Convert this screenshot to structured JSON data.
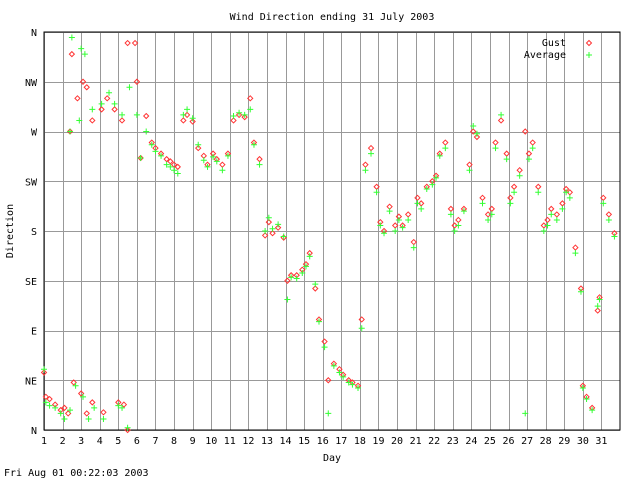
{
  "chart_data": {
    "type": "scatter",
    "title": "Wind Direction ending 31 July 2003",
    "xlabel": "Day",
    "ylabel": "Direction",
    "x_ticks": [
      "1",
      "2",
      "3",
      "4",
      "5",
      "6",
      "7",
      "8",
      "9",
      "10",
      "11",
      "12",
      "13",
      "14",
      "15",
      "16",
      "17",
      "18",
      "19",
      "20",
      "21",
      "22",
      "23",
      "24",
      "25",
      "26",
      "27",
      "28",
      "29",
      "30",
      "31"
    ],
    "y_ticks": [
      "N",
      "NE",
      "E",
      "SE",
      "S",
      "SW",
      "W",
      "NW",
      "N"
    ],
    "xlim": [
      1,
      32
    ],
    "ylim": [
      0,
      360
    ],
    "grid": true,
    "legend_position": "top-right",
    "series": [
      {
        "name": "Gust",
        "marker": "diamond",
        "color": "#ff3333",
        "points": [
          [
            1.0,
            52
          ],
          [
            1.1,
            30
          ],
          [
            1.3,
            28
          ],
          [
            1.6,
            23
          ],
          [
            1.9,
            18
          ],
          [
            2.1,
            20
          ],
          [
            2.3,
            15
          ],
          [
            2.6,
            43
          ],
          [
            3.0,
            33
          ],
          [
            3.3,
            15
          ],
          [
            3.6,
            25
          ],
          [
            4.2,
            16
          ],
          [
            5.0,
            25
          ],
          [
            5.3,
            23
          ],
          [
            5.5,
            0
          ],
          [
            2.4,
            270
          ],
          [
            2.5,
            340
          ],
          [
            2.8,
            300
          ],
          [
            3.1,
            315
          ],
          [
            3.3,
            310
          ],
          [
            3.6,
            280
          ],
          [
            4.1,
            290
          ],
          [
            4.4,
            300
          ],
          [
            4.8,
            290
          ],
          [
            5.2,
            280
          ],
          [
            5.5,
            350
          ],
          [
            5.9,
            350
          ],
          [
            6.0,
            315
          ],
          [
            6.2,
            246
          ],
          [
            6.5,
            284
          ],
          [
            6.8,
            260
          ],
          [
            7.0,
            255
          ],
          [
            7.3,
            250
          ],
          [
            7.6,
            245
          ],
          [
            7.8,
            243
          ],
          [
            8.0,
            240
          ],
          [
            8.2,
            238
          ],
          [
            8.5,
            280
          ],
          [
            8.7,
            285
          ],
          [
            9.0,
            279
          ],
          [
            9.3,
            255
          ],
          [
            9.6,
            248
          ],
          [
            9.8,
            240
          ],
          [
            10.1,
            250
          ],
          [
            10.3,
            245
          ],
          [
            10.6,
            240
          ],
          [
            10.9,
            250
          ],
          [
            11.2,
            280
          ],
          [
            11.5,
            285
          ],
          [
            11.8,
            283
          ],
          [
            12.1,
            300
          ],
          [
            12.3,
            260
          ],
          [
            12.6,
            245
          ],
          [
            12.9,
            176
          ],
          [
            13.1,
            188
          ],
          [
            13.3,
            178
          ],
          [
            13.6,
            183
          ],
          [
            13.9,
            174
          ],
          [
            14.1,
            135
          ],
          [
            14.3,
            140
          ],
          [
            14.6,
            140
          ],
          [
            14.9,
            145
          ],
          [
            15.1,
            150
          ],
          [
            15.3,
            160
          ],
          [
            15.6,
            128
          ],
          [
            15.8,
            100
          ],
          [
            16.1,
            80
          ],
          [
            16.3,
            45
          ],
          [
            16.6,
            60
          ],
          [
            16.9,
            55
          ],
          [
            17.1,
            50
          ],
          [
            17.4,
            45
          ],
          [
            17.6,
            43
          ],
          [
            17.9,
            40
          ],
          [
            18.1,
            100
          ],
          [
            18.3,
            240
          ],
          [
            18.6,
            255
          ],
          [
            18.9,
            220
          ],
          [
            19.1,
            188
          ],
          [
            19.3,
            180
          ],
          [
            19.6,
            202
          ],
          [
            19.9,
            185
          ],
          [
            20.1,
            193
          ],
          [
            20.3,
            185
          ],
          [
            20.6,
            195
          ],
          [
            20.9,
            170
          ],
          [
            21.1,
            210
          ],
          [
            21.3,
            205
          ],
          [
            21.6,
            220
          ],
          [
            21.9,
            225
          ],
          [
            22.1,
            230
          ],
          [
            22.3,
            250
          ],
          [
            22.6,
            260
          ],
          [
            22.9,
            200
          ],
          [
            23.1,
            185
          ],
          [
            23.3,
            190
          ],
          [
            23.6,
            200
          ],
          [
            23.9,
            240
          ],
          [
            24.1,
            270
          ],
          [
            24.3,
            265
          ],
          [
            24.6,
            210
          ],
          [
            24.9,
            195
          ],
          [
            25.1,
            200
          ],
          [
            25.3,
            260
          ],
          [
            25.6,
            280
          ],
          [
            25.9,
            250
          ],
          [
            26.1,
            210
          ],
          [
            26.3,
            220
          ],
          [
            26.6,
            235
          ],
          [
            26.9,
            270
          ],
          [
            27.1,
            250
          ],
          [
            27.3,
            260
          ],
          [
            27.6,
            220
          ],
          [
            27.9,
            185
          ],
          [
            28.1,
            190
          ],
          [
            28.3,
            200
          ],
          [
            28.6,
            195
          ],
          [
            28.9,
            205
          ],
          [
            29.1,
            218
          ],
          [
            29.3,
            215
          ],
          [
            29.6,
            165
          ],
          [
            29.9,
            128
          ],
          [
            30.0,
            40
          ],
          [
            30.2,
            30
          ],
          [
            30.5,
            20
          ],
          [
            30.8,
            108
          ],
          [
            30.9,
            120
          ],
          [
            31.1,
            210
          ],
          [
            31.4,
            195
          ],
          [
            31.7,
            178
          ]
        ]
      },
      {
        "name": "Average",
        "marker": "plus",
        "color": "#33ff33",
        "points": [
          [
            1.0,
            55
          ],
          [
            1.1,
            25
          ],
          [
            1.3,
            22
          ],
          [
            1.6,
            20
          ],
          [
            1.9,
            15
          ],
          [
            2.1,
            10
          ],
          [
            2.4,
            18
          ],
          [
            2.7,
            40
          ],
          [
            3.1,
            30
          ],
          [
            3.4,
            10
          ],
          [
            3.7,
            20
          ],
          [
            4.2,
            10
          ],
          [
            5.0,
            22
          ],
          [
            5.2,
            20
          ],
          [
            5.5,
            2
          ],
          [
            2.4,
            270
          ],
          [
            2.5,
            355
          ],
          [
            2.9,
            280
          ],
          [
            3.0,
            345
          ],
          [
            3.2,
            340
          ],
          [
            3.6,
            290
          ],
          [
            4.1,
            295
          ],
          [
            4.5,
            305
          ],
          [
            4.8,
            295
          ],
          [
            5.2,
            285
          ],
          [
            5.6,
            310
          ],
          [
            6.0,
            285
          ],
          [
            6.2,
            246
          ],
          [
            6.5,
            270
          ],
          [
            6.8,
            258
          ],
          [
            7.0,
            252
          ],
          [
            7.3,
            248
          ],
          [
            7.6,
            240
          ],
          [
            7.8,
            238
          ],
          [
            8.0,
            235
          ],
          [
            8.2,
            232
          ],
          [
            8.5,
            285
          ],
          [
            8.7,
            290
          ],
          [
            9.0,
            282
          ],
          [
            9.3,
            258
          ],
          [
            9.6,
            244
          ],
          [
            9.8,
            238
          ],
          [
            10.1,
            247
          ],
          [
            10.3,
            243
          ],
          [
            10.6,
            235
          ],
          [
            10.9,
            248
          ],
          [
            11.2,
            284
          ],
          [
            11.5,
            287
          ],
          [
            11.8,
            285
          ],
          [
            12.1,
            290
          ],
          [
            12.3,
            258
          ],
          [
            12.6,
            240
          ],
          [
            12.9,
            180
          ],
          [
            13.1,
            192
          ],
          [
            13.3,
            182
          ],
          [
            13.6,
            186
          ],
          [
            13.9,
            175
          ],
          [
            14.1,
            118
          ],
          [
            14.3,
            138
          ],
          [
            14.6,
            137
          ],
          [
            14.9,
            142
          ],
          [
            15.1,
            148
          ],
          [
            15.3,
            157
          ],
          [
            15.6,
            132
          ],
          [
            15.8,
            98
          ],
          [
            16.1,
            75
          ],
          [
            16.3,
            15
          ],
          [
            16.6,
            58
          ],
          [
            16.9,
            52
          ],
          [
            17.1,
            48
          ],
          [
            17.4,
            43
          ],
          [
            17.6,
            41
          ],
          [
            17.9,
            38
          ],
          [
            18.1,
            92
          ],
          [
            18.3,
            235
          ],
          [
            18.6,
            250
          ],
          [
            18.9,
            215
          ],
          [
            19.1,
            185
          ],
          [
            19.3,
            178
          ],
          [
            19.6,
            198
          ],
          [
            19.9,
            180
          ],
          [
            20.1,
            190
          ],
          [
            20.3,
            183
          ],
          [
            20.6,
            190
          ],
          [
            20.9,
            165
          ],
          [
            21.1,
            205
          ],
          [
            21.3,
            200
          ],
          [
            21.6,
            218
          ],
          [
            21.9,
            222
          ],
          [
            22.1,
            228
          ],
          [
            22.3,
            248
          ],
          [
            22.6,
            255
          ],
          [
            22.9,
            195
          ],
          [
            23.1,
            180
          ],
          [
            23.3,
            185
          ],
          [
            23.6,
            198
          ],
          [
            23.9,
            235
          ],
          [
            24.1,
            275
          ],
          [
            24.3,
            268
          ],
          [
            24.6,
            205
          ],
          [
            24.9,
            190
          ],
          [
            25.1,
            195
          ],
          [
            25.3,
            255
          ],
          [
            25.6,
            285
          ],
          [
            25.9,
            245
          ],
          [
            26.1,
            205
          ],
          [
            26.3,
            215
          ],
          [
            26.6,
            230
          ],
          [
            26.9,
            15
          ],
          [
            27.1,
            245
          ],
          [
            27.3,
            255
          ],
          [
            27.6,
            215
          ],
          [
            27.9,
            180
          ],
          [
            28.1,
            185
          ],
          [
            28.3,
            195
          ],
          [
            28.6,
            190
          ],
          [
            28.9,
            200
          ],
          [
            29.1,
            215
          ],
          [
            29.3,
            210
          ],
          [
            29.6,
            160
          ],
          [
            29.9,
            125
          ],
          [
            30.0,
            38
          ],
          [
            30.2,
            28
          ],
          [
            30.5,
            18
          ],
          [
            30.8,
            112
          ],
          [
            30.9,
            118
          ],
          [
            31.1,
            205
          ],
          [
            31.4,
            190
          ],
          [
            31.7,
            175
          ]
        ]
      }
    ]
  },
  "footer": {
    "timestamp": "Fri Aug 01 00:22:03 2003"
  }
}
